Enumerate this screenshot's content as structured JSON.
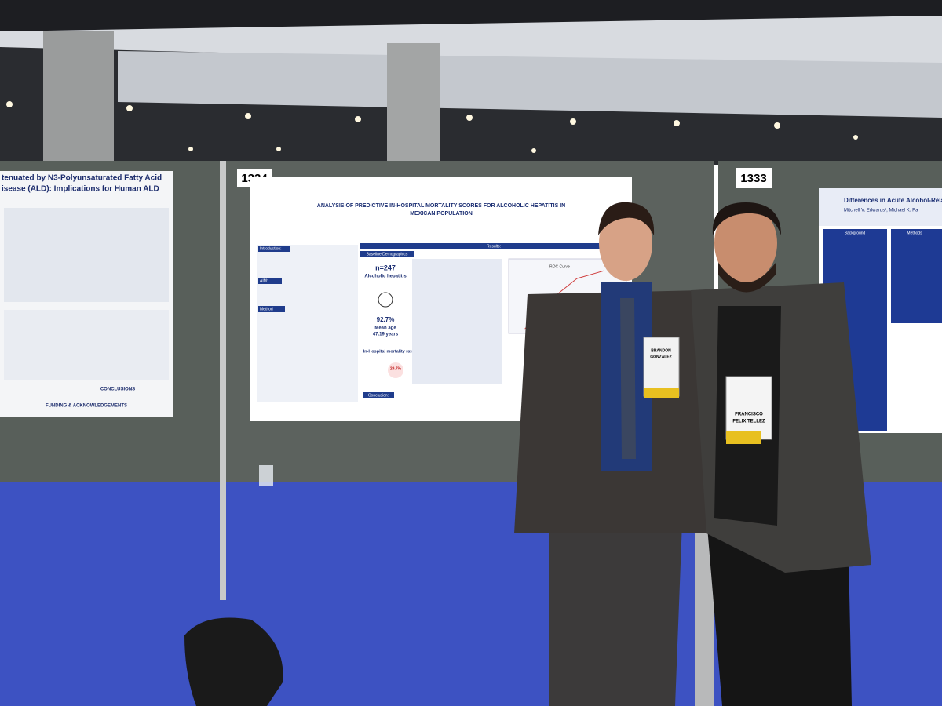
{
  "scene": {
    "booth_numbers": [
      "1334",
      "1333"
    ],
    "left_poster": {
      "title_lines": [
        "tenuated by N3-Polyunsaturated Fatty Acid",
        "isease (ALD): Implications for Human ALD"
      ],
      "sections": [
        "CONCLUSIONS",
        "FUNDING & ACKNOWLEDGEMENTS"
      ]
    },
    "center_poster": {
      "title_lines": [
        "ANALYSIS OF PREDICTIVE IN-HOSPITAL MORTALITY SCORES FOR ALCOHOLIC HEPATITIS IN",
        "MEXICAN POPULATION"
      ],
      "sections": [
        "Introduction:",
        "AIM:",
        "Method",
        "Results:",
        "Baseline Demographics",
        "Conclusion:"
      ],
      "n": "n=247",
      "cohort": "Alcoholic hepatitis",
      "male_share": "92.7%",
      "mean_age": [
        "Mean age",
        "47.19 years"
      ],
      "mortality_label": "In-Hospital mortality rate",
      "mortality_value": "29.7%",
      "chart_title": "ROC Curve"
    },
    "right_poster": {
      "title": "Differences in Acute Alcohol-Related Healthc",
      "authors": "Mitchell V. Edwards¹, Michael K. Pa",
      "sections": [
        "Background",
        "Methods"
      ]
    },
    "badges": [
      [
        "BRANDON",
        "GONZALEZ"
      ],
      [
        "FRANCISCO",
        "FELIX TELLEZ"
      ]
    ]
  }
}
